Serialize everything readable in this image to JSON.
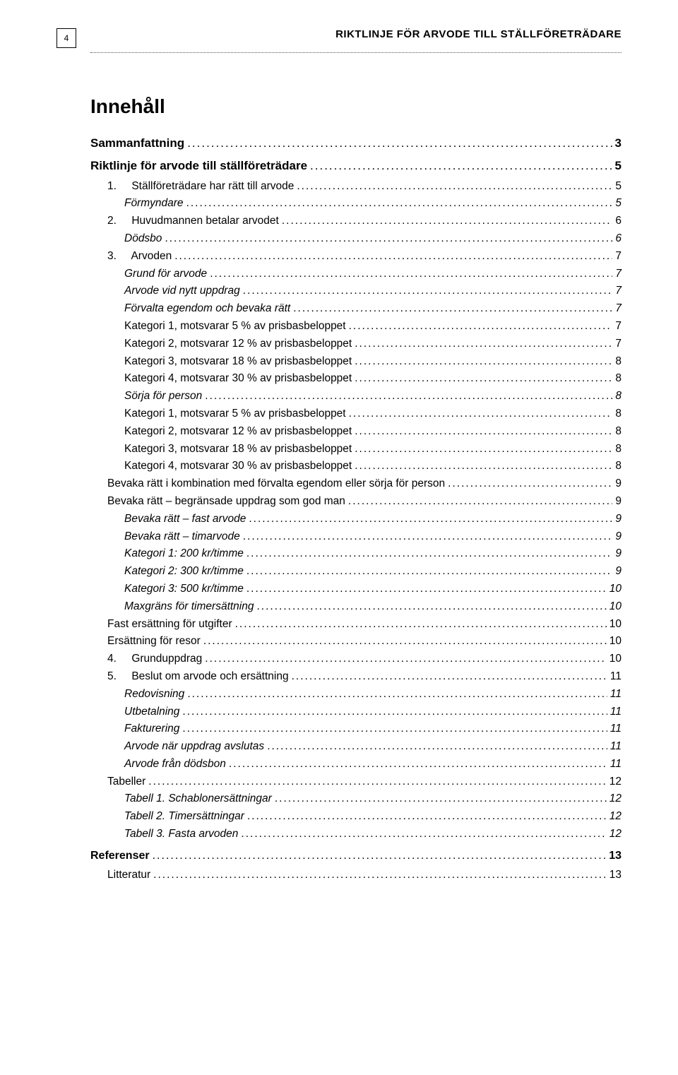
{
  "header": {
    "page_number": "4",
    "running_title": "RIKTLINJE FÖR ARVODE TILL STÄLLFÖRETRÄDARE"
  },
  "toc": {
    "title": "Innehåll",
    "entries": [
      {
        "label": "Sammanfattning",
        "page": "3",
        "cls": "bold"
      },
      {
        "label": "Riktlinje för arvode till ställföreträdare",
        "page": "5",
        "cls": "bold"
      },
      {
        "num": "1.",
        "label": "Ställföreträdare har rätt till arvode",
        "page": "5",
        "cls": "l1"
      },
      {
        "label": "Förmyndare",
        "page": "5",
        "cls": "l2"
      },
      {
        "num": "2.",
        "label": "Huvudmannen betalar arvodet",
        "page": "6",
        "cls": "l1"
      },
      {
        "label": "Dödsbo",
        "page": "6",
        "cls": "l2"
      },
      {
        "num": "3.",
        "label": "Arvoden",
        "page": "7",
        "cls": "l1"
      },
      {
        "label": "Grund för arvode",
        "page": "7",
        "cls": "l2"
      },
      {
        "label": "Arvode vid nytt uppdrag",
        "page": "7",
        "cls": "l2"
      },
      {
        "label": "Förvalta egendom och bevaka rätt",
        "page": "7",
        "cls": "l2"
      },
      {
        "label": "Kategori 1, motsvarar 5 % av prisbasbeloppet",
        "page": "7",
        "cls": "l2n"
      },
      {
        "label": "Kategori 2, motsvarar 12 % av prisbasbeloppet",
        "page": "7",
        "cls": "l2n"
      },
      {
        "label": "Kategori 3, motsvarar 18 % av prisbasbeloppet",
        "page": "8",
        "cls": "l2n"
      },
      {
        "label": "Kategori 4, motsvarar 30 % av prisbasbeloppet",
        "page": "8",
        "cls": "l2n"
      },
      {
        "label": "Sörja för person",
        "page": "8",
        "cls": "l2"
      },
      {
        "label": "Kategori 1, motsvarar 5 % av prisbasbeloppet",
        "page": "8",
        "cls": "l2n"
      },
      {
        "label": "Kategori 2, motsvarar 12 % av prisbasbeloppet",
        "page": "8",
        "cls": "l2n"
      },
      {
        "label": "Kategori 3, motsvarar 18 % av prisbasbeloppet",
        "page": "8",
        "cls": "l2n"
      },
      {
        "label": "Kategori 4, motsvarar 30 % av prisbasbeloppet",
        "page": "8",
        "cls": "l2n"
      },
      {
        "label": "Bevaka rätt i kombination med förvalta egendom eller sörja för person",
        "page": "9",
        "cls": "l1"
      },
      {
        "label": "Bevaka rätt – begränsade uppdrag som god man",
        "page": "9",
        "cls": "l1"
      },
      {
        "label": "Bevaka rätt – fast arvode",
        "page": "9",
        "cls": "l2"
      },
      {
        "label": "Bevaka rätt – timarvode",
        "page": "9",
        "cls": "l2"
      },
      {
        "label": "Kategori 1: 200 kr/timme",
        "page": "9",
        "cls": "l2"
      },
      {
        "label": "Kategori 2: 300 kr/timme",
        "page": "9",
        "cls": "l2"
      },
      {
        "label": "Kategori 3: 500 kr/timme",
        "page": "10",
        "cls": "l2"
      },
      {
        "label": "Maxgräns för timersättning",
        "page": "10",
        "cls": "l2"
      },
      {
        "label": "Fast ersättning för utgifter",
        "page": "10",
        "cls": "l1"
      },
      {
        "label": "Ersättning för resor",
        "page": "10",
        "cls": "l1"
      },
      {
        "num": "4.",
        "label": "Grunduppdrag",
        "page": "10",
        "cls": "l1"
      },
      {
        "num": "5.",
        "label": "Beslut om arvode och ersättning",
        "page": "11",
        "cls": "l1"
      },
      {
        "label": "Redovisning",
        "page": "11",
        "cls": "l2"
      },
      {
        "label": "Utbetalning",
        "page": "11",
        "cls": "l2"
      },
      {
        "label": "Fakturering",
        "page": "11",
        "cls": "l2"
      },
      {
        "label": "Arvode när uppdrag avslutas",
        "page": "11",
        "cls": "l2"
      },
      {
        "label": "Arvode från dödsbon",
        "page": "11",
        "cls": "l2"
      },
      {
        "label": "Tabeller",
        "page": "12",
        "cls": "l1"
      },
      {
        "label": "Tabell 1. Schablonersättningar",
        "page": "12",
        "cls": "l2"
      },
      {
        "label": "Tabell 2. Timersättningar",
        "page": "12",
        "cls": "l2"
      },
      {
        "label": "Tabell 3. Fasta arvoden",
        "page": "12",
        "cls": "l2"
      },
      {
        "label": "Referenser",
        "page": "13",
        "cls": "bold-sm"
      },
      {
        "label": "Litteratur",
        "page": "13",
        "cls": "l1"
      }
    ]
  }
}
